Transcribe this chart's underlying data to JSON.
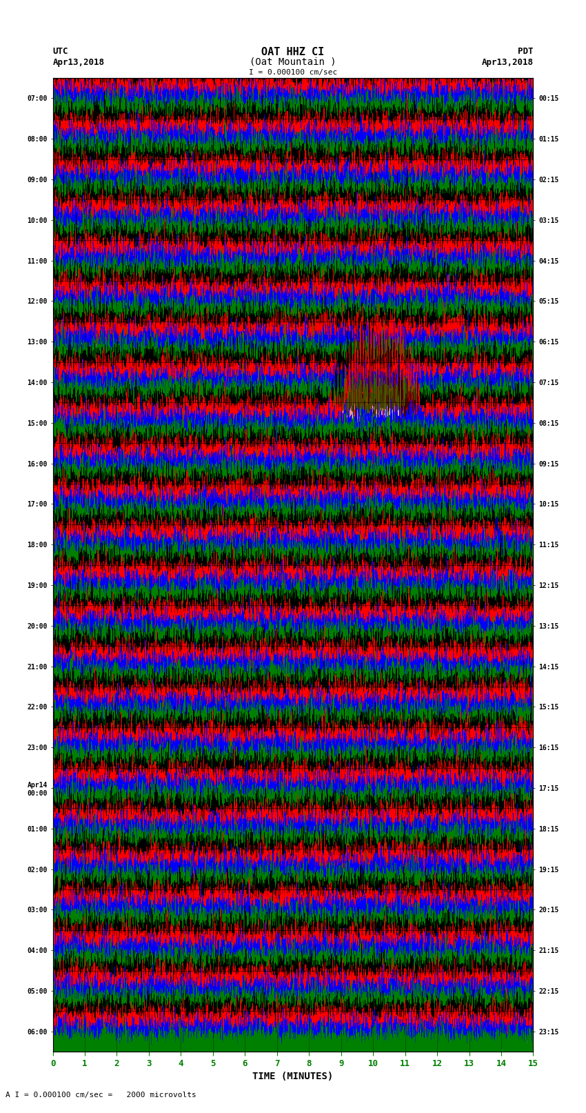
{
  "title_line1": "OAT HHZ CI",
  "title_line2": "(Oat Mountain )",
  "scale_text": "I = 0.000100 cm/sec",
  "footer_text": "A I = 0.000100 cm/sec =   2000 microvolts",
  "utc_label": "UTC",
  "utc_date": "Apr13,2018",
  "pdt_label": "PDT",
  "pdt_date": "Apr13,2018",
  "xlabel": "TIME (MINUTES)",
  "left_times": [
    "07:00",
    "08:00",
    "09:00",
    "10:00",
    "11:00",
    "12:00",
    "13:00",
    "14:00",
    "15:00",
    "16:00",
    "17:00",
    "18:00",
    "19:00",
    "20:00",
    "21:00",
    "22:00",
    "23:00",
    "Apr14\n00:00",
    "01:00",
    "02:00",
    "03:00",
    "04:00",
    "05:00",
    "06:00"
  ],
  "right_times": [
    "00:15",
    "01:15",
    "02:15",
    "03:15",
    "04:15",
    "05:15",
    "06:15",
    "07:15",
    "08:15",
    "09:15",
    "10:15",
    "11:15",
    "12:15",
    "13:15",
    "14:15",
    "15:15",
    "16:15",
    "17:15",
    "18:15",
    "19:15",
    "20:15",
    "21:15",
    "22:15",
    "23:15"
  ],
  "x_ticks": [
    0,
    1,
    2,
    3,
    4,
    5,
    6,
    7,
    8,
    9,
    10,
    11,
    12,
    13,
    14,
    15
  ],
  "n_rows": 24,
  "n_sub": 4,
  "n_points": 9000,
  "amplitude": 0.22,
  "sub_colors": [
    "black",
    "red",
    "blue",
    "green"
  ],
  "bg_color": "white",
  "plot_bg": "white",
  "title_color": "black",
  "tick_color": "green",
  "label_color": "black",
  "event_row": 8,
  "event_sub": 0,
  "event_minute": 9.5,
  "event_amplitude": 1.8
}
